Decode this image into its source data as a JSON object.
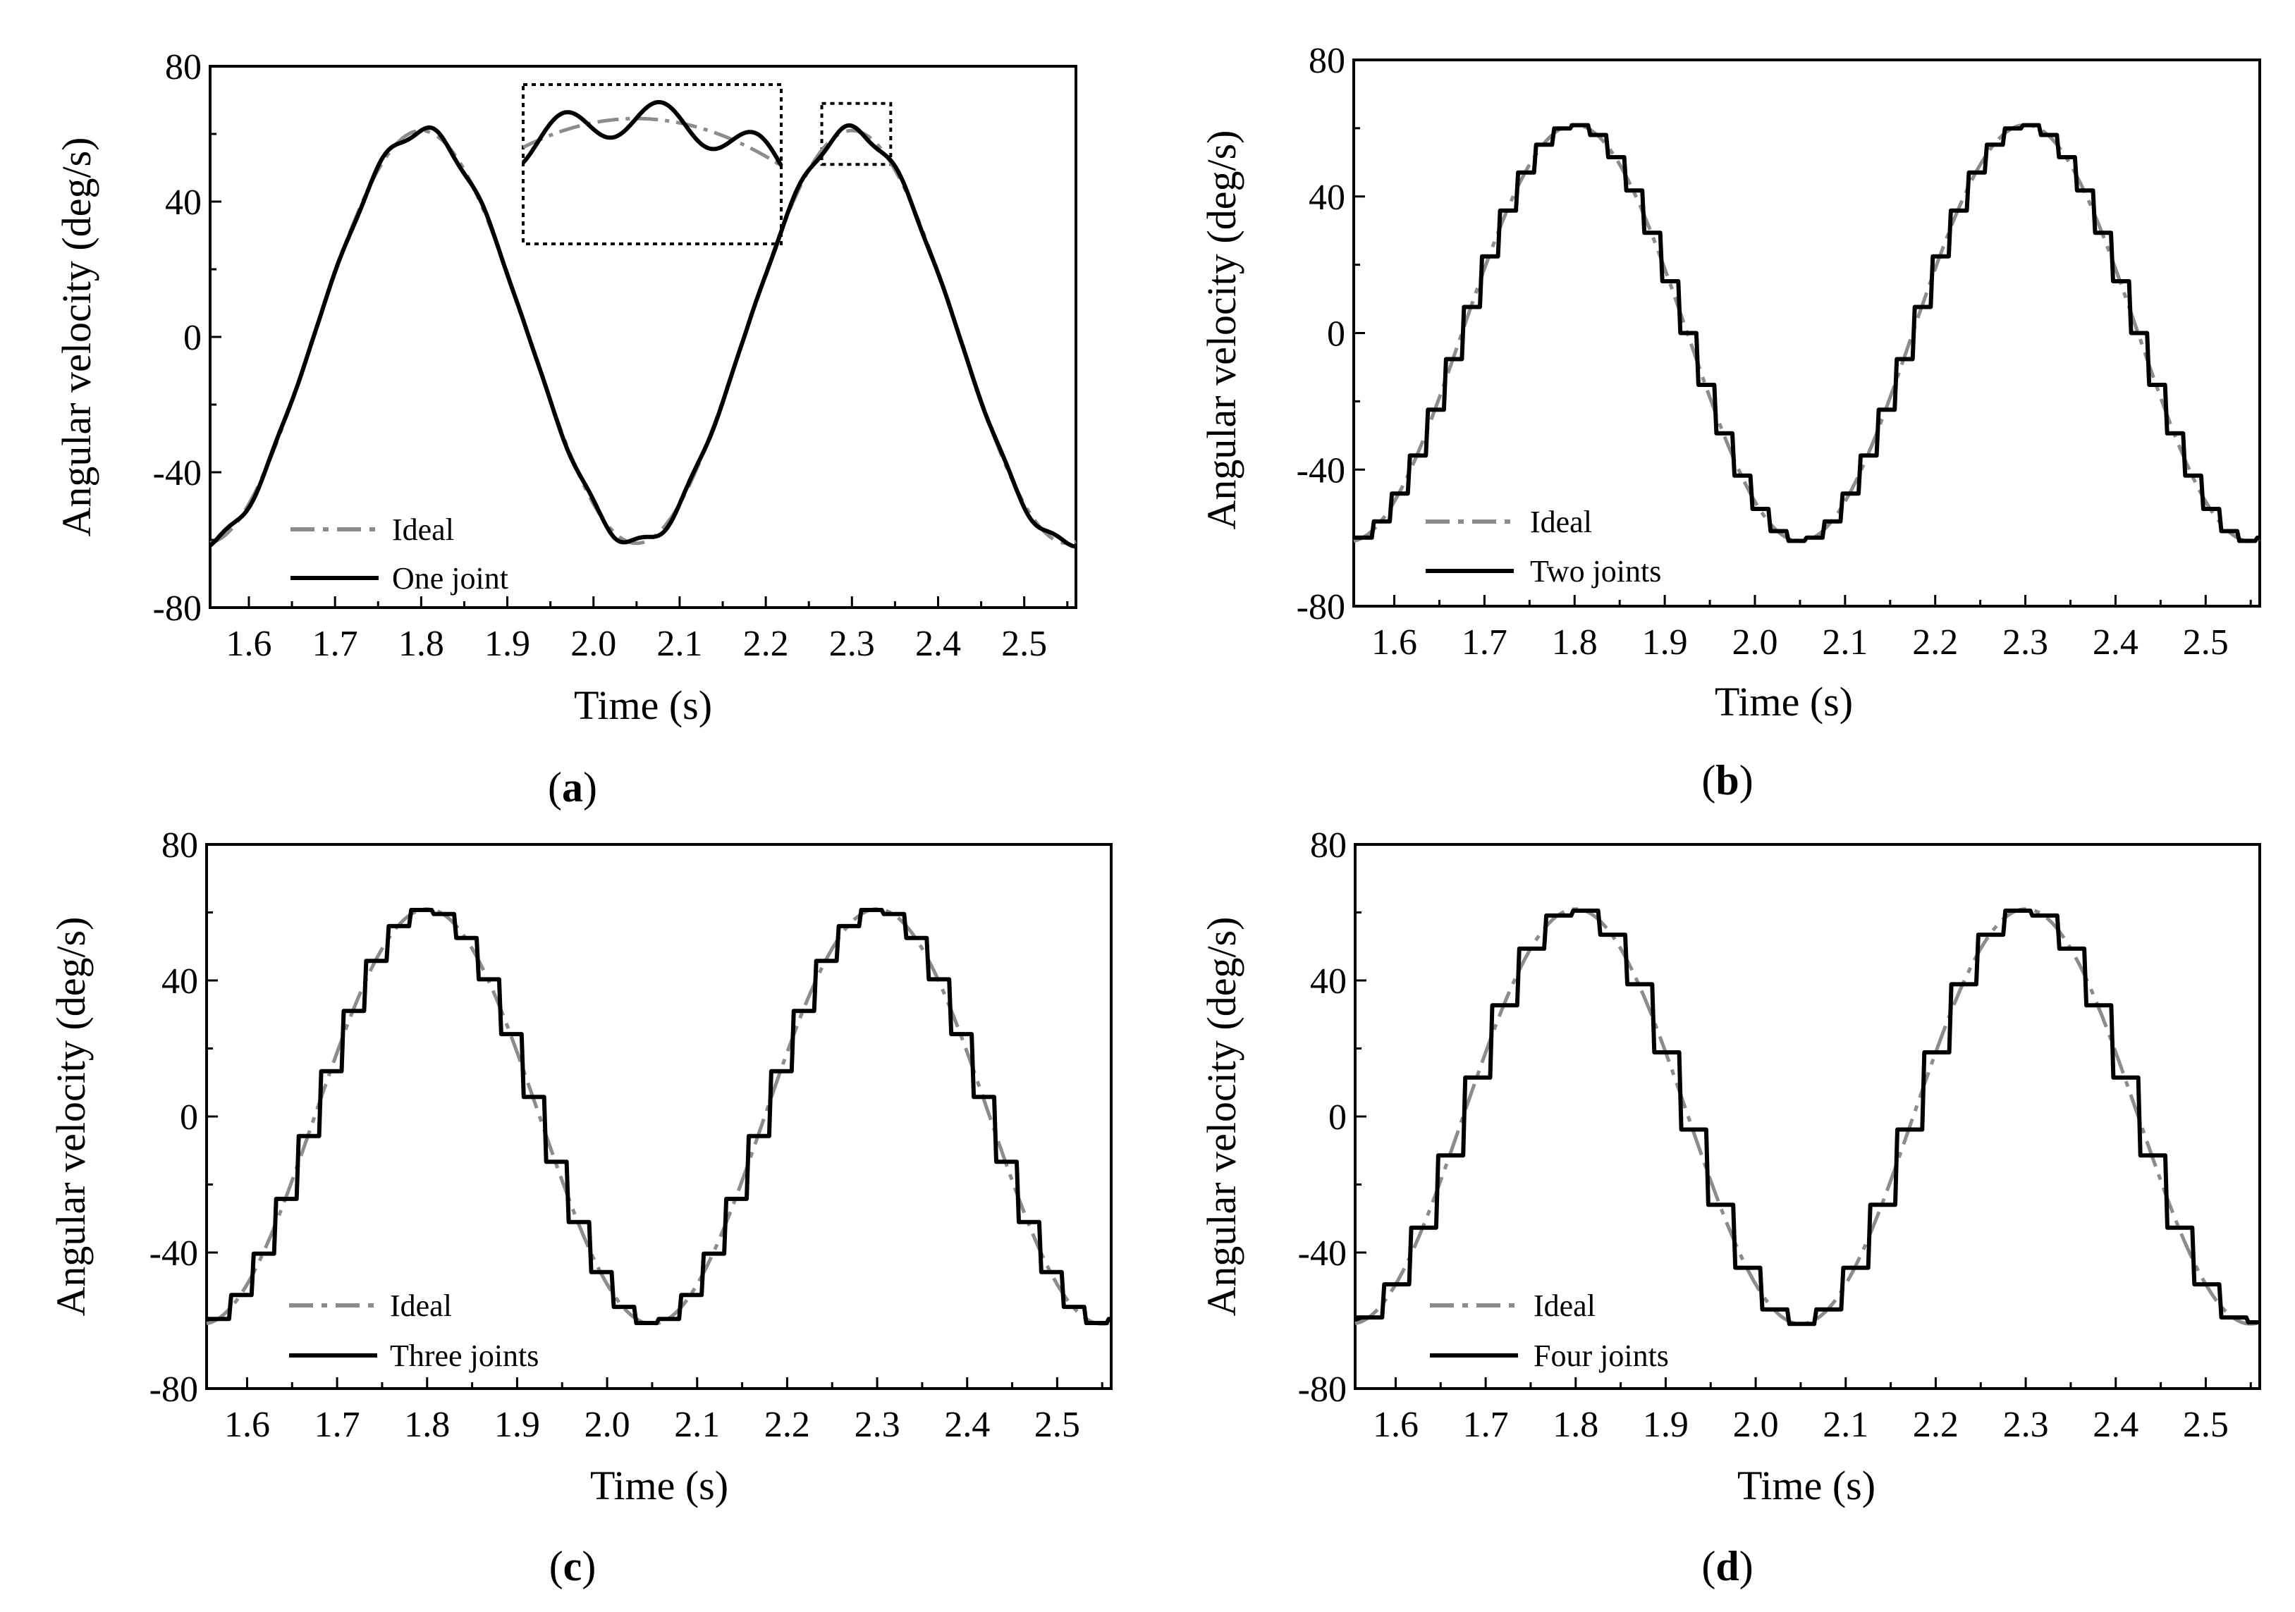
{
  "colors": {
    "ideal": "#8c8c8c",
    "actual": "#000000",
    "axes": "#000000",
    "background": "#ffffff"
  },
  "chart_data": [
    {
      "id": "a",
      "type": "line",
      "panel_label": "a",
      "xlabel": "Time (s)",
      "ylabel": "Angular velocity (deg/s)",
      "xlim": [
        1.555,
        2.56
      ],
      "ylim": [
        -80,
        80
      ],
      "x_ticks": [
        1.6,
        1.7,
        1.8,
        1.9,
        2.0,
        2.1,
        2.2,
        2.3,
        2.4,
        2.5
      ],
      "x_tick_labels": [
        "1.6",
        "1.7",
        "1.8",
        "1.9",
        "2.0",
        "2.1",
        "2.2",
        "2.3",
        "2.4",
        "2.5"
      ],
      "y_ticks": [
        -80,
        -40,
        0,
        40,
        80
      ],
      "y_tick_labels": [
        "-80",
        "-40",
        "0",
        "40",
        "80"
      ],
      "ideal": {
        "amplitude": 61,
        "period": 0.5,
        "peak_time": 1.8
      },
      "series": [
        {
          "name": "Ideal",
          "style": "dash-dot",
          "color": "#8c8c8c"
        },
        {
          "name": "One joint",
          "style": "solid",
          "color": "#000000",
          "kind": "smooth"
        }
      ],
      "legend": [
        "Ideal",
        "One joint"
      ],
      "legend_position": "bottom-left",
      "inset": {
        "zoom_box_x": [
          2.265,
          2.345
        ],
        "zoom_box_y": [
          51,
          69
        ]
      }
    },
    {
      "id": "b",
      "type": "line",
      "panel_label": "b",
      "xlabel": "Time (s)",
      "ylabel": "Angular velocity (deg/s)",
      "xlim": [
        1.555,
        2.56
      ],
      "ylim": [
        -80,
        80
      ],
      "x_ticks": [
        1.6,
        1.7,
        1.8,
        1.9,
        2.0,
        2.1,
        2.2,
        2.3,
        2.4,
        2.5
      ],
      "x_tick_labels": [
        "1.6",
        "1.7",
        "1.8",
        "1.9",
        "2.0",
        "2.1",
        "2.2",
        "2.3",
        "2.4",
        "2.5"
      ],
      "y_ticks": [
        -80,
        -40,
        0,
        40,
        80
      ],
      "y_tick_labels": [
        "-80",
        "-40",
        "0",
        "40",
        "80"
      ],
      "ideal": {
        "amplitude": 61,
        "period": 0.5,
        "peak_time": 1.8
      },
      "series": [
        {
          "name": "Ideal",
          "style": "dash-dot",
          "color": "#8c8c8c"
        },
        {
          "name": "Two joints",
          "style": "solid",
          "color": "#000000",
          "kind": "staircase",
          "step": 0.02
        }
      ],
      "legend": [
        "Ideal",
        "Two joints"
      ],
      "legend_position": "bottom-left"
    },
    {
      "id": "c",
      "type": "line",
      "panel_label": "c",
      "xlabel": "Time (s)",
      "ylabel": "Angular velocity (deg/s)",
      "xlim": [
        1.555,
        2.56
      ],
      "ylim": [
        -80,
        80
      ],
      "x_ticks": [
        1.6,
        1.7,
        1.8,
        1.9,
        2.0,
        2.1,
        2.2,
        2.3,
        2.4,
        2.5
      ],
      "x_tick_labels": [
        "1.6",
        "1.7",
        "1.8",
        "1.9",
        "2.0",
        "2.1",
        "2.2",
        "2.3",
        "2.4",
        "2.5"
      ],
      "y_ticks": [
        -80,
        -40,
        0,
        40,
        80
      ],
      "y_tick_labels": [
        "-80",
        "-40",
        "0",
        "40",
        "80"
      ],
      "ideal": {
        "amplitude": 61,
        "period": 0.5,
        "peak_time": 1.8
      },
      "series": [
        {
          "name": "Ideal",
          "style": "dash-dot",
          "color": "#8c8c8c"
        },
        {
          "name": "Three joints",
          "style": "solid",
          "color": "#000000",
          "kind": "staircase",
          "step": 0.025
        }
      ],
      "legend": [
        "Ideal",
        "Three joints"
      ],
      "legend_position": "bottom-left"
    },
    {
      "id": "d",
      "type": "line",
      "panel_label": "d",
      "xlabel": "Time (s)",
      "ylabel": "Angular velocity (deg/s)",
      "xlim": [
        1.555,
        2.56
      ],
      "ylim": [
        -80,
        80
      ],
      "x_ticks": [
        1.6,
        1.7,
        1.8,
        1.9,
        2.0,
        2.1,
        2.2,
        2.3,
        2.4,
        2.5
      ],
      "x_tick_labels": [
        "1.6",
        "1.7",
        "1.8",
        "1.9",
        "2.0",
        "2.1",
        "2.2",
        "2.3",
        "2.4",
        "2.5"
      ],
      "y_ticks": [
        -80,
        -40,
        0,
        40,
        80
      ],
      "y_tick_labels": [
        "-80",
        "-40",
        "0",
        "40",
        "80"
      ],
      "ideal": {
        "amplitude": 61,
        "period": 0.5,
        "peak_time": 1.8
      },
      "series": [
        {
          "name": "Ideal",
          "style": "dash-dot",
          "color": "#8c8c8c"
        },
        {
          "name": "Four joints",
          "style": "solid",
          "color": "#000000",
          "kind": "staircase",
          "step": 0.03
        }
      ],
      "legend": [
        "Ideal",
        "Four joints"
      ],
      "legend_position": "bottom-left"
    }
  ]
}
